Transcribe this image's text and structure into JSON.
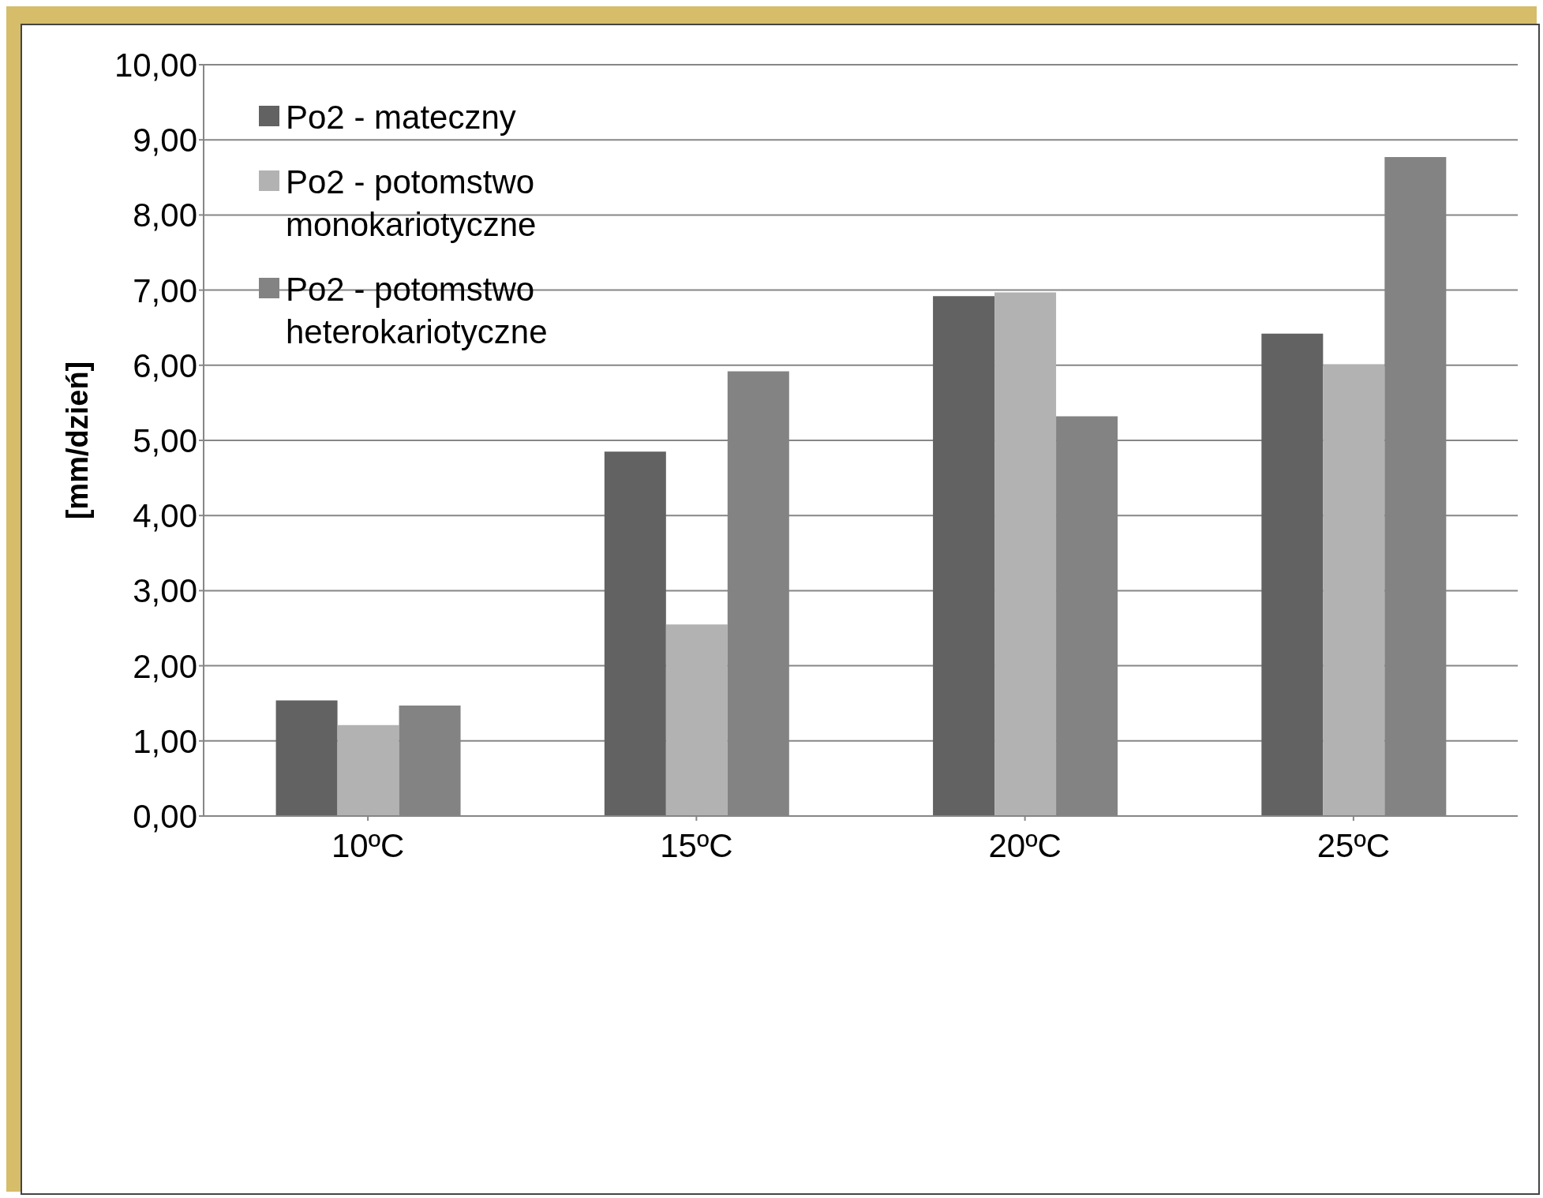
{
  "chart_data": {
    "type": "bar",
    "ylabel": "[mm/dzień]",
    "categories": [
      "10ºC",
      "15ºC",
      "20ºC",
      "25ºC"
    ],
    "series": [
      {
        "name": "Po2 - mateczny",
        "color": "#626262",
        "values": [
          1.54,
          4.85,
          6.92,
          6.42
        ]
      },
      {
        "name": "Po2 - potomstwo monokariotyczne",
        "color": "#b2b2b2",
        "values": [
          1.21,
          2.55,
          6.97,
          6.01
        ]
      },
      {
        "name": "Po2 - potomstwo heterokariotyczne",
        "color": "#838383",
        "values": [
          1.47,
          5.92,
          5.32,
          8.77
        ]
      }
    ],
    "ylim": [
      0,
      10
    ],
    "yticks": [
      {
        "value": 0,
        "label": "0,00"
      },
      {
        "value": 1,
        "label": "1,00"
      },
      {
        "value": 2,
        "label": "2,00"
      },
      {
        "value": 3,
        "label": "3,00"
      },
      {
        "value": 4,
        "label": "4,00"
      },
      {
        "value": 5,
        "label": "5,00"
      },
      {
        "value": 6,
        "label": "6,00"
      },
      {
        "value": 7,
        "label": "7,00"
      },
      {
        "value": 8,
        "label": "8,00"
      },
      {
        "value": 9,
        "label": "9,00"
      },
      {
        "value": 10,
        "label": "10,00"
      }
    ],
    "grid": "y",
    "legend": "top left"
  }
}
